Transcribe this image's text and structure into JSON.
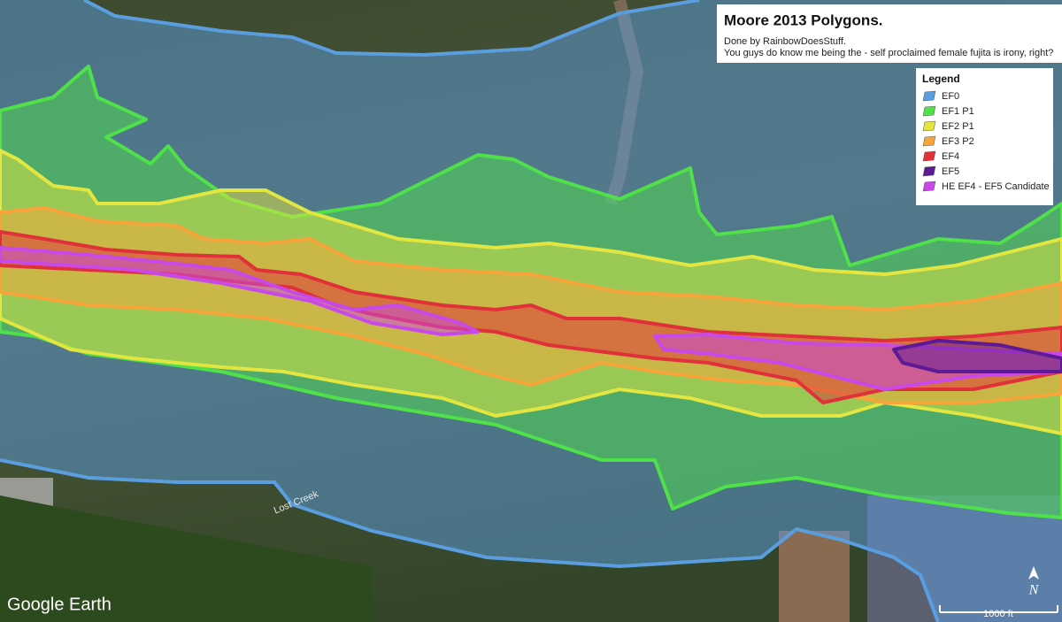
{
  "header": {
    "title": "Moore 2013 Polygons.",
    "credit": "Done by RainbowDoesStuff.",
    "note": "You guys do know me being the - self proclaimed female fujita is irony, right?"
  },
  "legend": {
    "title": "Legend",
    "items": [
      {
        "label": "EF0",
        "color": "#5b9ee0"
      },
      {
        "label": "EF1 P1",
        "color": "#4fe04a"
      },
      {
        "label": "EF2 P1",
        "color": "#e3e640"
      },
      {
        "label": "EF3 P2",
        "color": "#f7a53a"
      },
      {
        "label": "EF4",
        "color": "#e0303a"
      },
      {
        "label": "EF5",
        "color": "#5e1a94"
      },
      {
        "label": "HE EF4 - EF5 Candidate",
        "color": "#c848e8"
      }
    ]
  },
  "map_labels": {
    "creek": "Lost Creek",
    "brand": "Google Earth",
    "scale": "1000 ft",
    "north": "N"
  }
}
